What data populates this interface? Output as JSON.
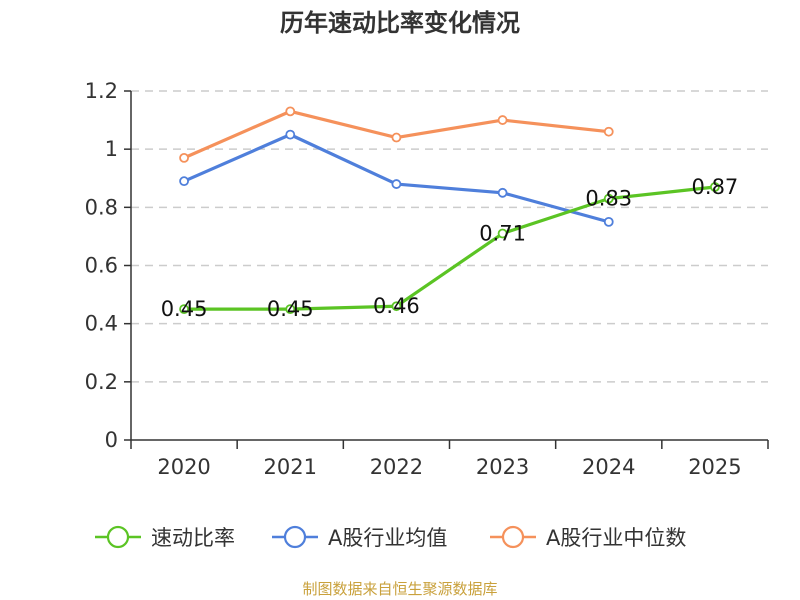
{
  "chart_data": {
    "type": "line",
    "title": "历年速动比率变化情况",
    "categories": [
      "2020",
      "2021",
      "2022",
      "2023",
      "2024",
      "2025"
    ],
    "ylim": [
      0,
      1.2
    ],
    "yticks": [
      0,
      0.2,
      0.4,
      0.6,
      0.8,
      1,
      1.2
    ],
    "ytick_labels": [
      "0",
      "0.2",
      "0.4",
      "0.6",
      "0.8",
      "1",
      "1.2"
    ],
    "grid": true,
    "legend_position": "bottom",
    "series": [
      {
        "name": "速动比率",
        "color": "#5bc424",
        "values": [
          0.45,
          0.45,
          0.46,
          0.71,
          0.83,
          0.87
        ],
        "labels": [
          "0.45",
          "0.45",
          "0.46",
          "0.71",
          "0.83",
          "0.87"
        ]
      },
      {
        "name": "A股行业均值",
        "color": "#4f7fdb",
        "values": [
          0.89,
          1.05,
          0.88,
          0.85,
          0.75,
          null
        ]
      },
      {
        "name": "A股行业中位数",
        "color": "#f5915b",
        "values": [
          0.97,
          1.13,
          1.04,
          1.1,
          1.06,
          null
        ]
      }
    ]
  },
  "source": "制图数据来自恒生聚源数据库"
}
